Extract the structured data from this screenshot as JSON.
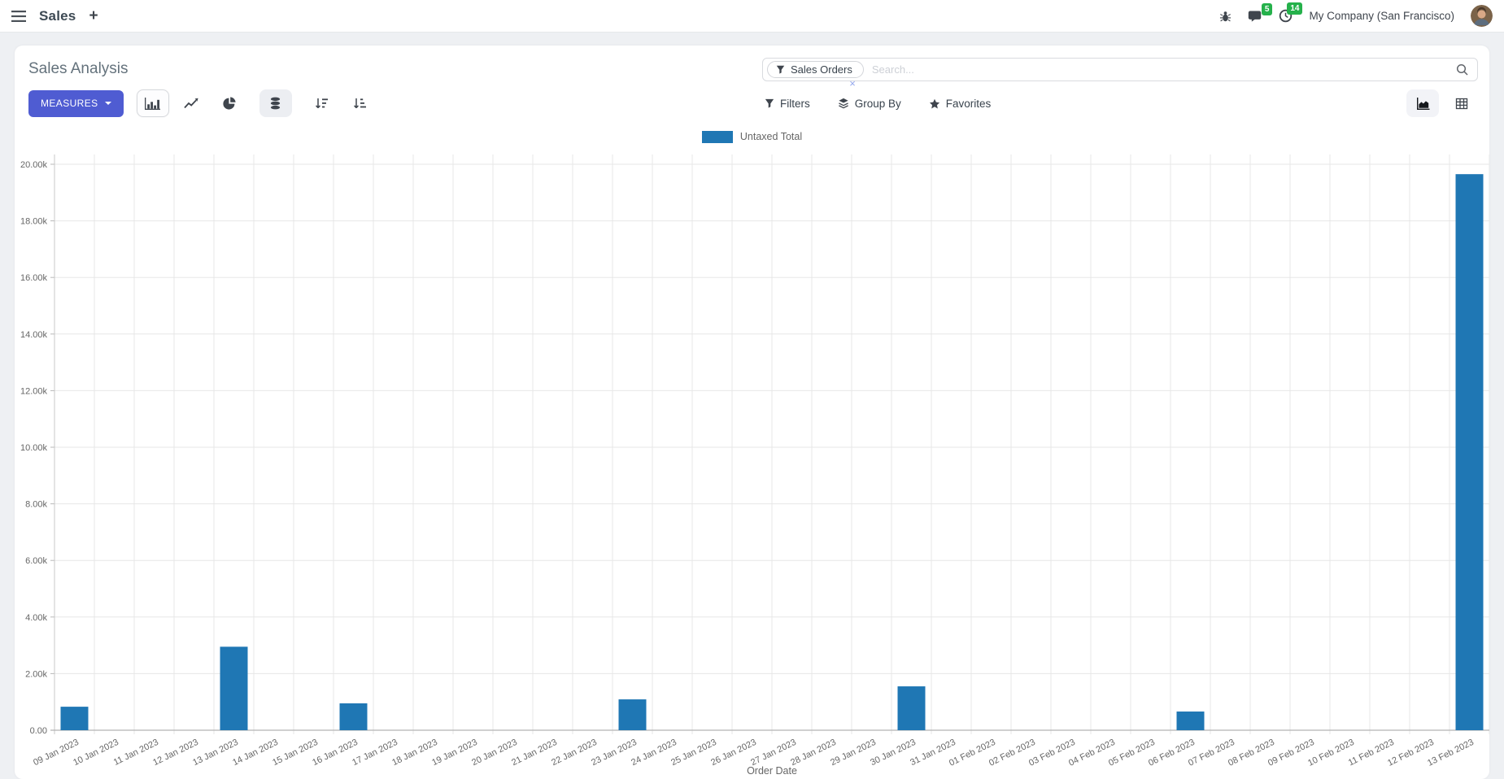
{
  "navbar": {
    "app_name": "Sales",
    "add_label": "+",
    "messages_badge": "5",
    "activities_badge": "14",
    "company": "My Company (San Francisco)"
  },
  "control_panel": {
    "title": "Sales Analysis",
    "measures_label": "MEASURES",
    "filters_label": "Filters",
    "group_by_label": "Group By",
    "favorites_label": "Favorites",
    "search": {
      "facet_label": "Sales Orders",
      "facet_remove": "×",
      "placeholder": "Search..."
    }
  },
  "chart_data": {
    "type": "bar",
    "legend": "Untaxed Total",
    "bar_color": "#1f77b4",
    "xlabel": "Order Date",
    "ylim": [
      0,
      20000
    ],
    "ytick_step": 2000,
    "ytick_labels": [
      "0.00",
      "2.00k",
      "4.00k",
      "6.00k",
      "8.00k",
      "10.00k",
      "12.00k",
      "14.00k",
      "16.00k",
      "18.00k",
      "20.00k"
    ],
    "grid": true,
    "legend_position": "top",
    "categories": [
      "09 Jan 2023",
      "10 Jan 2023",
      "11 Jan 2023",
      "12 Jan 2023",
      "13 Jan 2023",
      "14 Jan 2023",
      "15 Jan 2023",
      "16 Jan 2023",
      "17 Jan 2023",
      "18 Jan 2023",
      "19 Jan 2023",
      "20 Jan 2023",
      "21 Jan 2023",
      "22 Jan 2023",
      "23 Jan 2023",
      "24 Jan 2023",
      "25 Jan 2023",
      "26 Jan 2023",
      "27 Jan 2023",
      "28 Jan 2023",
      "29 Jan 2023",
      "30 Jan 2023",
      "31 Jan 2023",
      "01 Feb 2023",
      "02 Feb 2023",
      "03 Feb 2023",
      "04 Feb 2023",
      "05 Feb 2023",
      "06 Feb 2023",
      "07 Feb 2023",
      "08 Feb 2023",
      "09 Feb 2023",
      "10 Feb 2023",
      "11 Feb 2023",
      "12 Feb 2023",
      "13 Feb 2023"
    ],
    "values": [
      830,
      0,
      0,
      0,
      2950,
      0,
      0,
      950,
      0,
      0,
      0,
      0,
      0,
      0,
      1090,
      0,
      0,
      0,
      0,
      0,
      0,
      1550,
      0,
      0,
      0,
      0,
      0,
      0,
      660,
      0,
      0,
      0,
      0,
      0,
      0,
      19650
    ]
  }
}
